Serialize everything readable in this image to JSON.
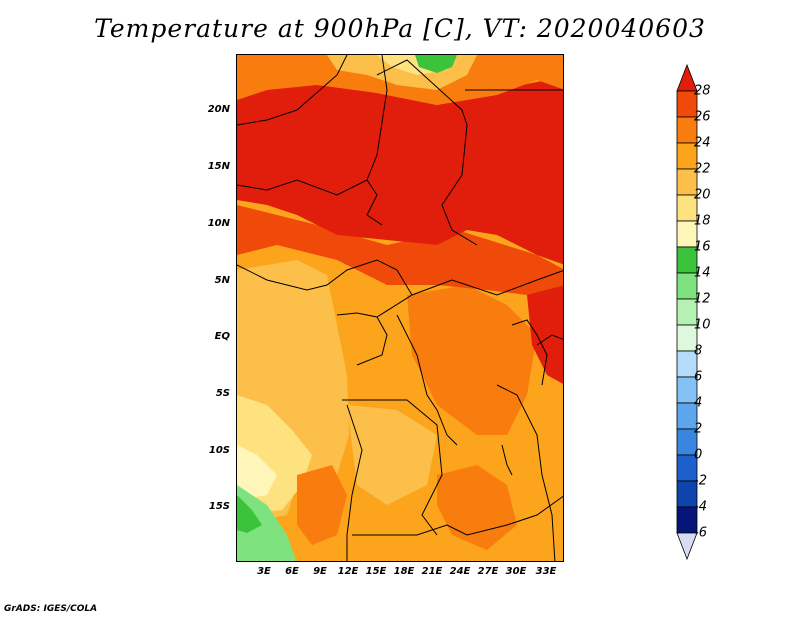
{
  "title": "Temperature at 900hPa [C], VT: 2020040603",
  "credit": "GrADS: IGES/COLA",
  "map": {
    "lat_labels": [
      "20N",
      "15N",
      "10N",
      "5N",
      "EQ",
      "5S",
      "10S",
      "15S"
    ],
    "lon_labels": [
      "3E",
      "6E",
      "9E",
      "12E",
      "15E",
      "18E",
      "21E",
      "24E",
      "27E",
      "30E",
      "33E"
    ]
  },
  "colorbar": {
    "labels": [
      "28",
      "26",
      "24",
      "22",
      "20",
      "18",
      "16",
      "14",
      "12",
      "10",
      "8",
      "6",
      "4",
      "2",
      "0",
      "-2",
      "-4",
      "-6"
    ],
    "colors": [
      "#e11e0b",
      "#f04a0a",
      "#f87d0e",
      "#fba41c",
      "#fcc04a",
      "#fde27f",
      "#fff6b9",
      "#3bc43b",
      "#7ee37e",
      "#b5f1b3",
      "#ddf8dd",
      "#b5dcfb",
      "#84c1f4",
      "#5da5ec",
      "#3986e1",
      "#1d60cc",
      "#0f43ad",
      "#06157a",
      "#d7dcf3"
    ]
  }
}
